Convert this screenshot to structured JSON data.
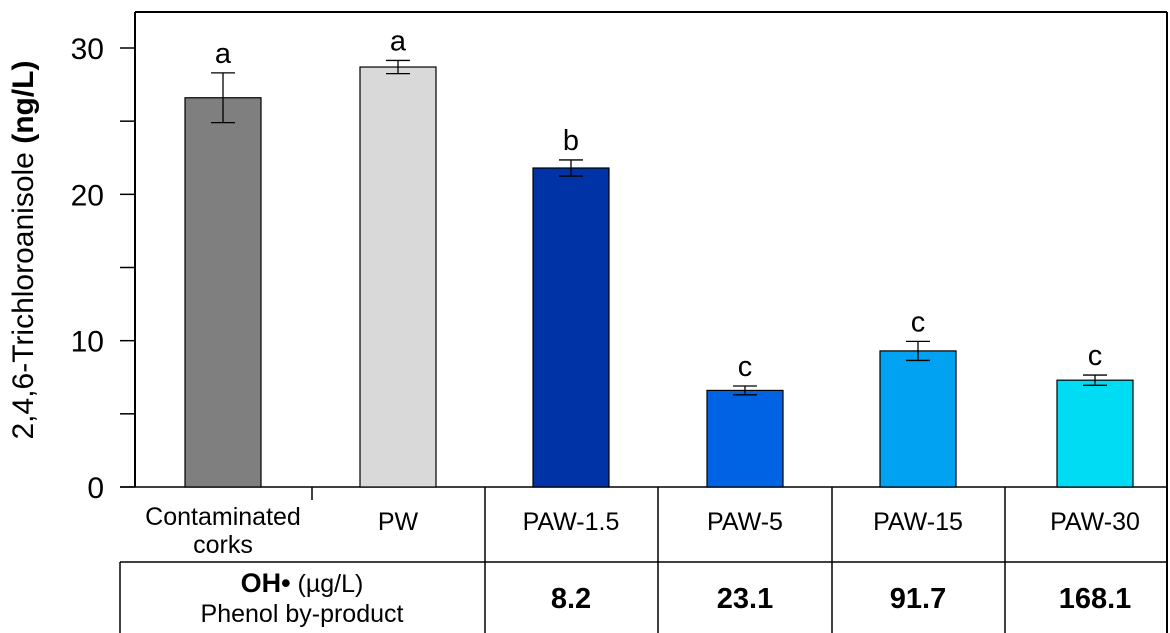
{
  "chart_data": {
    "type": "bar",
    "ylabel_prefix": "2,4,6-Trichloroanisole ",
    "ylabel_unit": "(ng/L)",
    "ylim": [
      0,
      32
    ],
    "yticks": [
      0,
      10,
      20,
      30
    ],
    "ytick_labels": [
      "0",
      "10",
      "20",
      "30"
    ],
    "grid": false,
    "categories": [
      "Contaminated corks",
      "PW",
      "PAW-1.5",
      "PAW-5",
      "PAW-15",
      "PAW-30"
    ],
    "category_lines": [
      [
        "Contaminated",
        "corks"
      ],
      [
        "PW"
      ],
      [
        "PAW-1.5"
      ],
      [
        "PAW-5"
      ],
      [
        "PAW-15"
      ],
      [
        "PAW-30"
      ]
    ],
    "values": [
      26.6,
      28.7,
      21.8,
      6.6,
      9.3,
      7.3
    ],
    "errors": [
      1.7,
      0.45,
      0.55,
      0.3,
      0.65,
      0.35
    ],
    "letters": [
      "a",
      "a",
      "b",
      "c",
      "c",
      "c"
    ],
    "colors": [
      "#7f7f7f",
      "#d9d9d9",
      "#0033a6",
      "#0063e3",
      "#00a2f1",
      "#00dcf3"
    ]
  },
  "table": {
    "header_bold": "OH•",
    "header_unit": " (µg/L)",
    "header_line2": "Phenol by-product",
    "values": [
      "",
      "",
      "8.2",
      "23.1",
      "91.7",
      "168.1"
    ]
  }
}
